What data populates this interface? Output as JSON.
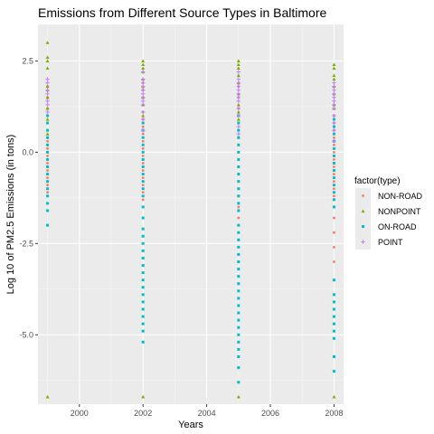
{
  "chart_data": {
    "type": "scatter",
    "title": "Emissions from Different Source Types in Baltimore",
    "xlabel": "Years",
    "ylabel": "Log 10 of PM2.5 Emissions (in tons)",
    "xlim": [
      1998.7,
      2008.3
    ],
    "ylim": [
      -6.9,
      3.5
    ],
    "x_ticks": [
      2000,
      2002,
      2004,
      2006,
      2008
    ],
    "x_tick_labels": [
      "2000",
      "2002",
      "2004",
      "2006",
      "2008"
    ],
    "y_ticks": [
      2.5,
      0.0,
      -2.5,
      -5.0
    ],
    "y_tick_labels": [
      "2.5",
      "0.0",
      "-2.5",
      "-5.0"
    ],
    "grid": true,
    "legend_title": "factor(type)",
    "legend_position": "right",
    "series": [
      {
        "name": "NON-ROAD",
        "color": "#f8766d",
        "marker": "circle",
        "points": [
          {
            "x": 1999,
            "y": [
              1.8,
              1.5,
              1.2,
              1.0,
              0.8,
              0.6,
              0.4,
              0.3,
              0.2,
              0.1,
              0.0,
              -0.1,
              -0.2,
              -0.3,
              -0.5,
              -0.7,
              -0.9,
              -1.1
            ]
          },
          {
            "x": 2002,
            "y": [
              1.9,
              1.7,
              1.5,
              1.3,
              1.1,
              0.9,
              0.7,
              0.5,
              0.3,
              0.1,
              -0.1,
              -0.3,
              -0.5,
              -0.7,
              -0.9,
              -1.1,
              -1.3
            ]
          },
          {
            "x": 2005,
            "y": [
              1.8,
              1.5,
              1.2,
              1.0,
              0.8,
              0.6,
              0.4,
              0.2,
              0.0,
              -0.2,
              -0.4,
              -0.6,
              -0.8,
              -1.0,
              -1.2,
              -1.5,
              -1.8
            ]
          },
          {
            "x": 2008,
            "y": [
              1.3,
              1.0,
              0.8,
              0.6,
              0.4,
              0.2,
              0.0,
              -0.2,
              -0.4,
              -0.6,
              -0.8,
              -1.0,
              -1.2,
              -1.5,
              -1.8,
              -2.2,
              -2.6,
              -3.0
            ]
          }
        ]
      },
      {
        "name": "NONPOINT",
        "color": "#7cae00",
        "marker": "triangle",
        "points": [
          {
            "x": 1999,
            "y": [
              3.0,
              2.6,
              2.5,
              2.3,
              1.8,
              1.7,
              1.5,
              1.2,
              0.9,
              0.5,
              -6.7
            ]
          },
          {
            "x": 2002,
            "y": [
              2.5,
              2.4,
              2.3,
              2.2,
              2.0,
              1.8,
              1.5,
              1.3,
              1.0,
              -6.7
            ]
          },
          {
            "x": 2005,
            "y": [
              2.5,
              2.4,
              2.3,
              2.1,
              1.9,
              1.6,
              1.3,
              1.1,
              0.9,
              -6.7
            ]
          },
          {
            "x": 2008,
            "y": [
              2.4,
              2.3,
              2.1,
              2.0,
              1.8,
              1.6,
              1.3,
              1.2,
              -6.7
            ]
          }
        ]
      },
      {
        "name": "ON-ROAD",
        "color": "#00bfc4",
        "marker": "square",
        "points": [
          {
            "x": 1999,
            "y": [
              1.0,
              0.8,
              0.6,
              0.4,
              0.2,
              0.0,
              -0.2,
              -0.4,
              -0.6,
              -0.8,
              -1.0,
              -1.2,
              -1.4,
              -1.6,
              -2.0
            ]
          },
          {
            "x": 2002,
            "y": [
              0.8,
              0.6,
              0.4,
              0.2,
              0.0,
              -0.2,
              -0.4,
              -0.6,
              -0.8,
              -1.0,
              -1.2,
              -1.5,
              -1.8,
              -2.1,
              -2.3,
              -2.5,
              -2.7,
              -2.9,
              -3.1,
              -3.3,
              -3.5,
              -3.7,
              -3.9,
              -4.1,
              -4.3,
              -4.5,
              -4.7,
              -4.9,
              -5.2
            ]
          },
          {
            "x": 2005,
            "y": [
              1.0,
              0.8,
              0.6,
              0.4,
              0.2,
              0.0,
              -0.2,
              -0.4,
              -0.6,
              -0.8,
              -1.0,
              -1.2,
              -1.4,
              -1.6,
              -2.0,
              -2.2,
              -2.4,
              -2.6,
              -2.8,
              -3.0,
              -3.2,
              -3.4,
              -3.6,
              -3.8,
              -4.0,
              -4.2,
              -4.4,
              -4.6,
              -4.8,
              -5.0,
              -5.2,
              -5.4,
              -5.6,
              -5.9,
              -6.3
            ]
          },
          {
            "x": 2008,
            "y": [
              0.9,
              0.7,
              0.5,
              0.3,
              0.1,
              -0.1,
              -0.3,
              -0.5,
              -0.7,
              -0.9,
              -1.1,
              -1.3,
              -1.5,
              -3.5,
              -3.9,
              -4.1,
              -4.3,
              -4.5,
              -4.7,
              -4.9,
              -5.1,
              -5.6,
              -6.0
            ]
          }
        ]
      },
      {
        "name": "POINT",
        "color": "#c77cff",
        "marker": "plus",
        "points": [
          {
            "x": 1999,
            "y": [
              2.0,
              1.9,
              1.7,
              1.6,
              1.4,
              1.3,
              1.1
            ]
          },
          {
            "x": 2002,
            "y": [
              2.2,
              2.0,
              1.9,
              1.8,
              1.7,
              1.6,
              1.5,
              1.4,
              1.3,
              1.1,
              0.9,
              0.6
            ]
          },
          {
            "x": 2005,
            "y": [
              2.2,
              2.0,
              1.9,
              1.8,
              1.7,
              1.6,
              1.5,
              1.4,
              1.2,
              1.0,
              0.7,
              0.5
            ]
          },
          {
            "x": 2008,
            "y": [
              1.9,
              1.8,
              1.7,
              1.6,
              1.5,
              1.4,
              1.3,
              1.2,
              1.0,
              0.8,
              0.6,
              0.3
            ]
          }
        ]
      }
    ]
  }
}
